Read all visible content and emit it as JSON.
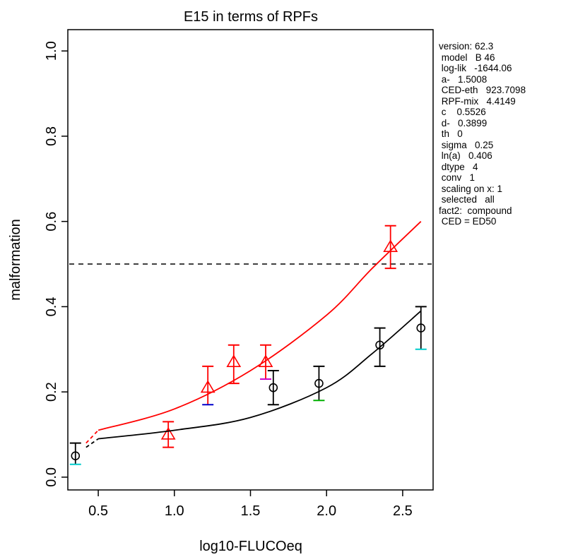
{
  "chart_data": {
    "type": "scatter",
    "title": "E15 in terms of RPFs",
    "xlabel": "log10-FLUCOeq",
    "ylabel": "malformation",
    "xlim": [
      0.3,
      2.7
    ],
    "ylim": [
      -0.03,
      1.05
    ],
    "x_ticks": [
      0.5,
      1.0,
      1.5,
      2.0,
      2.5
    ],
    "x_tick_labels": [
      "0.5",
      "1.0",
      "1.5",
      "2.0",
      "2.5"
    ],
    "y_ticks": [
      0.0,
      0.2,
      0.4,
      0.6,
      0.8,
      1.0
    ],
    "y_tick_labels": [
      "0.0",
      "0.2",
      "0.4",
      "0.6",
      "0.8",
      "1.0"
    ],
    "reference_line": {
      "y": 0.5,
      "style": "dashed",
      "color": "#000000"
    },
    "series": [
      {
        "marker": "triangle",
        "color": "#ff0000",
        "points": [
          {
            "x": 0.96,
            "y": 0.1,
            "lo": 0.07,
            "hi": 0.13
          },
          {
            "x": 1.22,
            "y": 0.21,
            "lo": 0.17,
            "hi": 0.26
          },
          {
            "x": 1.39,
            "y": 0.27,
            "lo": 0.22,
            "hi": 0.31
          },
          {
            "x": 1.6,
            "y": 0.27,
            "lo": 0.23,
            "hi": 0.31
          },
          {
            "x": 2.42,
            "y": 0.54,
            "lo": 0.49,
            "hi": 0.59
          }
        ],
        "curve": [
          [
            0.42,
            0.08
          ],
          [
            0.5,
            0.11
          ],
          [
            1.0,
            0.16
          ],
          [
            1.5,
            0.25
          ],
          [
            2.0,
            0.38
          ],
          [
            2.3,
            0.49
          ],
          [
            2.62,
            0.6
          ]
        ]
      },
      {
        "marker": "circle",
        "color": "#000000",
        "points": [
          {
            "x": 0.35,
            "y": 0.05,
            "lo": 0.03,
            "hi": 0.08
          },
          {
            "x": 1.65,
            "y": 0.21,
            "lo": 0.17,
            "hi": 0.25
          },
          {
            "x": 1.95,
            "y": 0.22,
            "lo": 0.18,
            "hi": 0.26
          },
          {
            "x": 2.35,
            "y": 0.31,
            "lo": 0.26,
            "hi": 0.35
          },
          {
            "x": 2.62,
            "y": 0.35,
            "lo": 0.3,
            "hi": 0.4
          }
        ],
        "curve": [
          [
            0.42,
            0.07
          ],
          [
            0.5,
            0.09
          ],
          [
            1.0,
            0.11
          ],
          [
            1.5,
            0.14
          ],
          [
            2.0,
            0.21
          ],
          [
            2.3,
            0.29
          ],
          [
            2.62,
            0.39
          ]
        ]
      }
    ],
    "errorbar_tip_colors": [
      "#00b000",
      "#0000cc",
      "#00cccc",
      "#cc00cc"
    ]
  },
  "side_panel": [
    "version: 62.3",
    " model   B 46",
    " log-lik   -1644.06",
    " a-   1.5008",
    " CED-eth   923.7098",
    " RPF-mix   4.4149",
    " c    0.5526",
    " d-   0.3899",
    " th   0",
    " sigma   0.25",
    " ln(a)   0.406",
    " dtype   4",
    " conv   1",
    " scaling on x: 1",
    " selected   all",
    "fact2:  compound",
    " CED = ED50"
  ]
}
